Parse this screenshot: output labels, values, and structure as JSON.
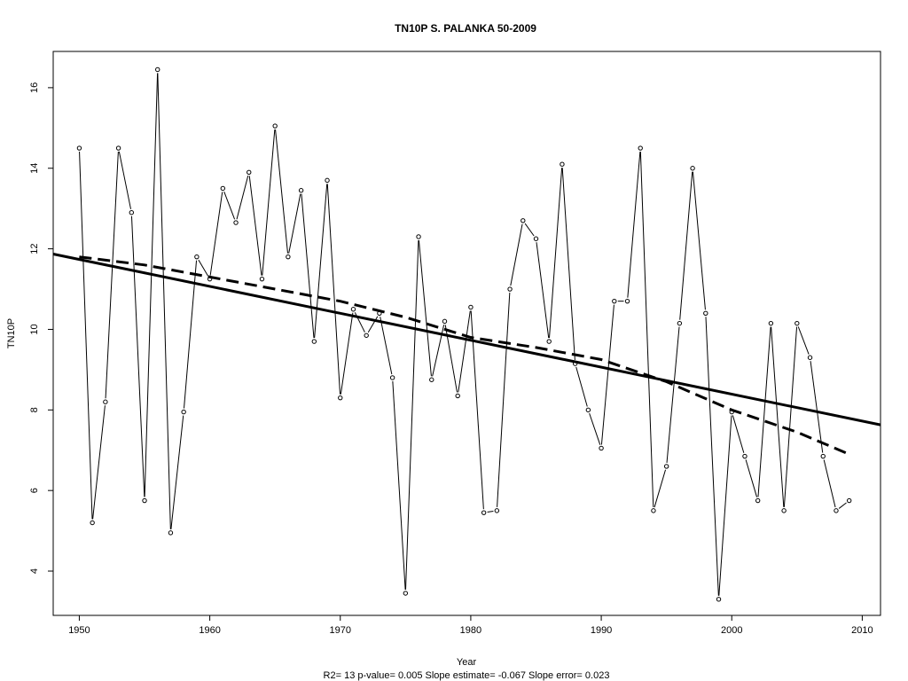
{
  "chart_data": {
    "type": "line",
    "title": "TN10P   S. PALANKA 50-2009",
    "xlabel": "Year",
    "ylabel": "TN10P",
    "subtitle": "R2= 13  p-value= 0.005  Slope estimate= -0.067  Slope error= 0.023",
    "xlim": [
      1948,
      2011.4
    ],
    "ylim": [
      2.9,
      16.9
    ],
    "x_ticks": [
      1950,
      1960,
      1970,
      1980,
      1990,
      2000,
      2010
    ],
    "y_ticks": [
      4,
      6,
      8,
      10,
      12,
      14,
      16
    ],
    "grid": false,
    "series": [
      {
        "x": [
          1950,
          1951,
          1952,
          1953,
          1954,
          1955,
          1956,
          1957,
          1958,
          1959,
          1960,
          1961,
          1962,
          1963,
          1964,
          1965,
          1966,
          1967,
          1968,
          1969,
          1970,
          1971,
          1972,
          1973,
          1974,
          1975,
          1976,
          1977,
          1978,
          1979,
          1980,
          1981,
          1982,
          1983,
          1984,
          1985,
          1986,
          1987,
          1988,
          1989,
          1990,
          1991,
          1992,
          1993,
          1994,
          1995,
          1996,
          1997,
          1998,
          1999,
          2000,
          2001,
          2002,
          2003,
          2004,
          2005,
          2006,
          2007,
          2008,
          2009
        ],
        "values": [
          14.5,
          5.2,
          8.2,
          14.5,
          12.9,
          5.75,
          16.45,
          4.95,
          7.95,
          11.8,
          11.25,
          13.5,
          12.65,
          13.9,
          11.25,
          15.05,
          11.8,
          13.45,
          9.7,
          13.7,
          8.3,
          10.5,
          9.85,
          10.4,
          8.8,
          3.45,
          12.3,
          8.75,
          10.2,
          8.35,
          10.55,
          5.45,
          5.5,
          11.0,
          12.7,
          12.25,
          9.7,
          14.1,
          9.15,
          8.0,
          7.05,
          10.7,
          10.7,
          14.5,
          5.5,
          6.6,
          10.15,
          14.0,
          10.4,
          3.3,
          7.95,
          6.85,
          5.75,
          10.15,
          5.5,
          10.15,
          9.3,
          6.85,
          5.5,
          5.75
        ]
      }
    ],
    "trend_linear": {
      "x": [
        1948,
        2011.4
      ],
      "y": [
        11.87,
        7.63
      ]
    },
    "trend_smooth": {
      "x": [
        1950,
        1955,
        1960,
        1965,
        1970,
        1975,
        1980,
        1985,
        1990,
        1995,
        2000,
        2005,
        2009
      ],
      "y": [
        11.8,
        11.6,
        11.3,
        11.0,
        10.7,
        10.3,
        9.8,
        9.55,
        9.25,
        8.7,
        8.0,
        7.45,
        6.9
      ]
    }
  }
}
